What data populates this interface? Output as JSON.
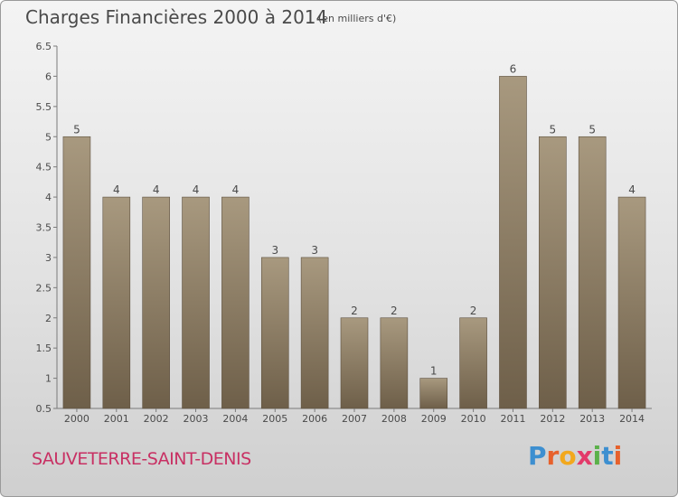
{
  "header": {
    "title": "Charges Financières 2000 à 2014",
    "subtitle": "(en milliers d'€)"
  },
  "footer": {
    "commune": "SAUVETERRE-SAINT-DENIS",
    "logo_letters": [
      "P",
      "r",
      "o",
      "x",
      "i",
      "t",
      "i"
    ]
  },
  "colors": {
    "bar": "#8c7b62",
    "bar_light": "#a8997f",
    "bar_dark": "#6e5f49",
    "commune_text": "#c83063"
  },
  "chart_data": {
    "type": "bar",
    "title": "Charges Financières 2000 à 2014",
    "subtitle": "(en milliers d'€)",
    "categories": [
      "2000",
      "2001",
      "2002",
      "2003",
      "2004",
      "2005",
      "2006",
      "2007",
      "2008",
      "2009",
      "2010",
      "2011",
      "2012",
      "2013",
      "2014"
    ],
    "values": [
      5,
      4,
      4,
      4,
      4,
      3,
      3,
      2,
      2,
      1,
      2,
      6,
      5,
      5,
      4
    ],
    "data_labels": [
      "5",
      "4",
      "4",
      "4",
      "4",
      "3",
      "3",
      "2",
      "2",
      "1",
      "2",
      "6",
      "5",
      "5",
      "4"
    ],
    "yticks": [
      "0.5",
      "1",
      "1.5",
      "2",
      "2.5",
      "3",
      "3.5",
      "4",
      "4.5",
      "5",
      "5.5",
      "6",
      "6.5"
    ],
    "ylim": [
      0.5,
      6.5
    ],
    "xlabel": "",
    "ylabel": "",
    "grid": false,
    "legend": "none"
  }
}
